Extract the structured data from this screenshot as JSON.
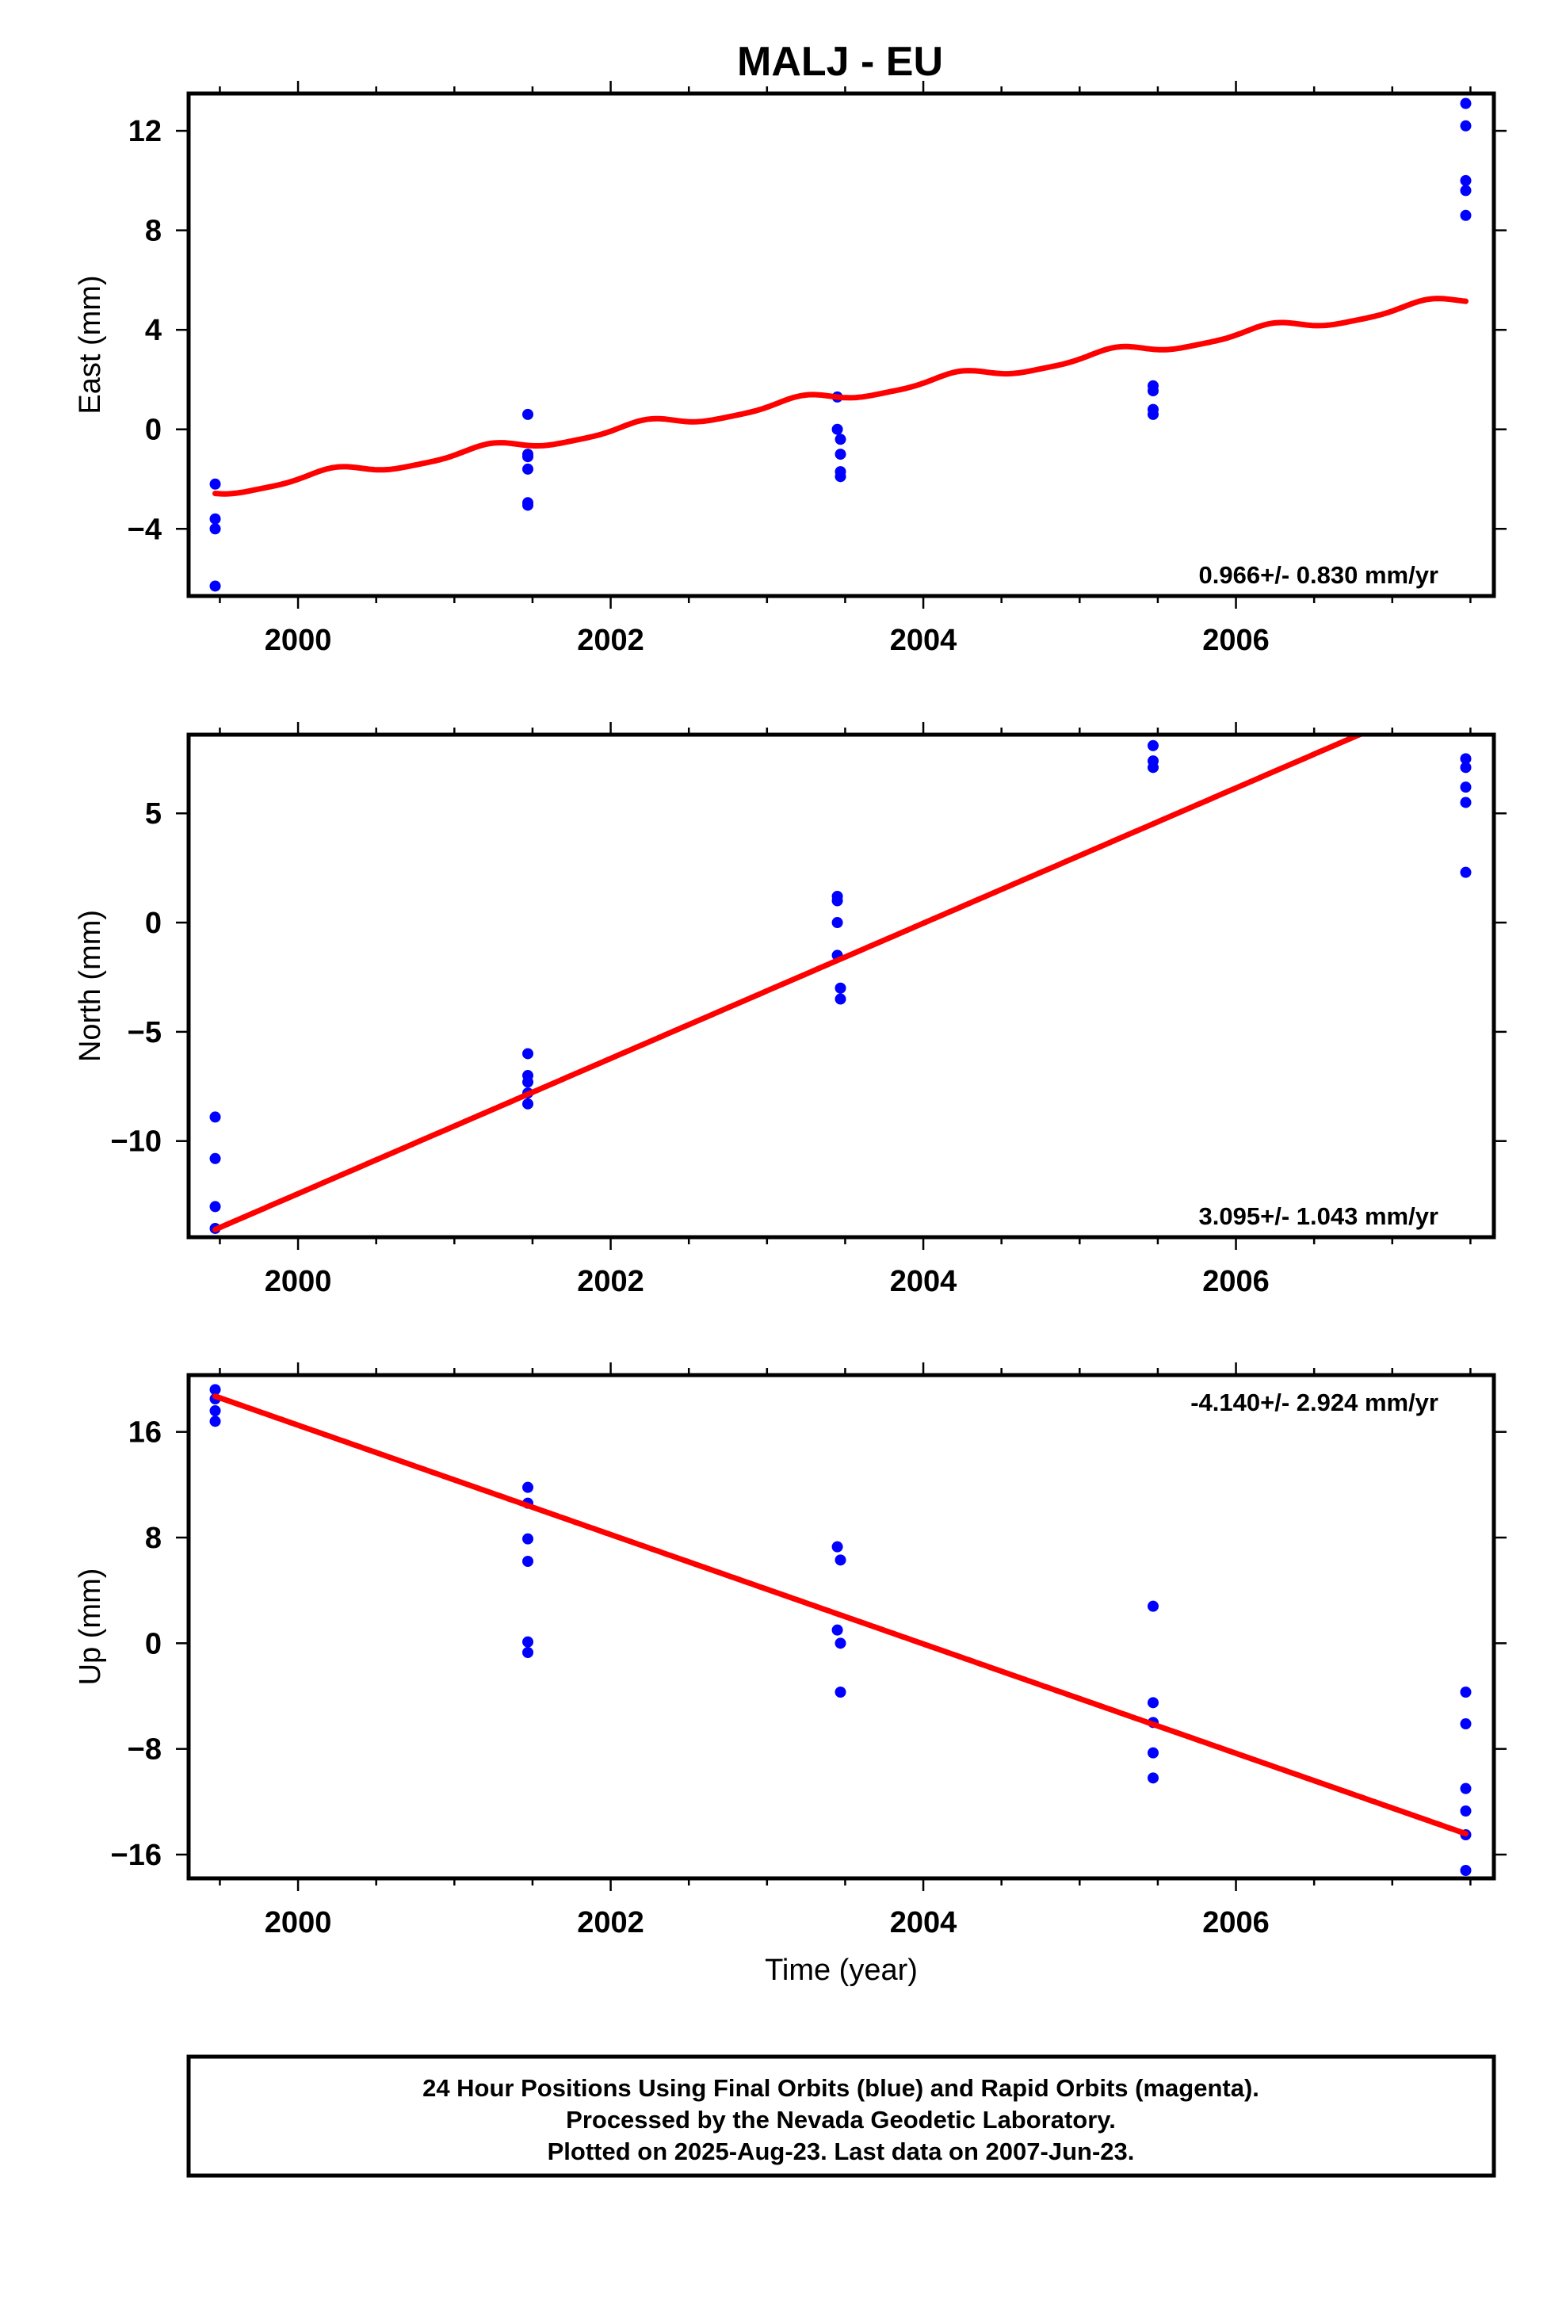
{
  "title": "MALJ - EU",
  "colors": {
    "points": "#0000ff",
    "fit": "#ff0000"
  },
  "chart_data": [
    {
      "type": "scatter",
      "ylabel": "East (mm)",
      "xlabel": "",
      "xlim": [
        1999.3,
        2007.65
      ],
      "ylim": [
        -6.7,
        13.5
      ],
      "x_ticks": [
        2000,
        2002,
        2004,
        2006
      ],
      "x_tick_labels": [
        "2000",
        "2002",
        "2004",
        "2006"
      ],
      "y_ticks": [
        -4,
        0,
        4,
        8,
        12
      ],
      "y_tick_labels": [
        "−4",
        "0",
        "4",
        "8",
        "12"
      ],
      "rate_label": "0.966+/- 0.830 mm/yr",
      "rate_position": "bottom-right",
      "points": [
        [
          1999.47,
          -2.2
        ],
        [
          1999.47,
          -3.6
        ],
        [
          1999.47,
          -4.0
        ],
        [
          1999.47,
          -6.3
        ],
        [
          2001.47,
          0.6
        ],
        [
          2001.47,
          -1.0
        ],
        [
          2001.47,
          -1.1
        ],
        [
          2001.47,
          -1.6
        ],
        [
          2001.47,
          -2.95
        ],
        [
          2001.47,
          -3.05
        ],
        [
          2003.45,
          1.3
        ],
        [
          2003.45,
          0.0
        ],
        [
          2003.47,
          -0.4
        ],
        [
          2003.47,
          -1.0
        ],
        [
          2003.47,
          -1.7
        ],
        [
          2003.47,
          -1.9
        ],
        [
          2005.47,
          1.75
        ],
        [
          2005.47,
          1.55
        ],
        [
          2005.47,
          0.8
        ],
        [
          2005.47,
          0.6
        ],
        [
          2007.47,
          13.1
        ],
        [
          2007.47,
          12.2
        ],
        [
          2007.47,
          10.0
        ],
        [
          2007.47,
          9.6
        ],
        [
          2007.47,
          8.6
        ]
      ],
      "fit": {
        "rate": 0.966,
        "intercept_at_x0": -2.52,
        "x0": 1999.47,
        "x_end": 2007.47,
        "seasonal": [
          {
            "cos": 0.05,
            "sin": 0.2,
            "omega": 6.2832
          },
          {
            "cos": -0.05,
            "sin": 0.0,
            "omega": 12.5664
          }
        ]
      }
    },
    {
      "type": "scatter",
      "ylabel": "North (mm)",
      "xlabel": "",
      "xlim": [
        1999.3,
        2007.65
      ],
      "ylim": [
        -14.4,
        8.6
      ],
      "x_ticks": [
        2000,
        2002,
        2004,
        2006
      ],
      "x_tick_labels": [
        "2000",
        "2002",
        "2004",
        "2006"
      ],
      "y_ticks": [
        -10,
        -5,
        0,
        5
      ],
      "y_tick_labels": [
        "−10",
        "−5",
        "0",
        "5"
      ],
      "rate_label": "3.095+/- 1.043 mm/yr",
      "rate_position": "bottom-right",
      "points": [
        [
          1999.47,
          -8.9
        ],
        [
          1999.47,
          -10.8
        ],
        [
          1999.47,
          -13.0
        ],
        [
          1999.47,
          -14.0
        ],
        [
          2001.47,
          -6.0
        ],
        [
          2001.47,
          -7.0
        ],
        [
          2001.47,
          -7.3
        ],
        [
          2001.47,
          -7.8
        ],
        [
          2001.47,
          -8.3
        ],
        [
          2003.45,
          1.2
        ],
        [
          2003.45,
          1.0
        ],
        [
          2003.45,
          0.0
        ],
        [
          2003.45,
          -1.5
        ],
        [
          2003.47,
          -3.0
        ],
        [
          2003.47,
          -3.5
        ],
        [
          2005.47,
          8.1
        ],
        [
          2005.47,
          7.4
        ],
        [
          2005.47,
          7.1
        ],
        [
          2007.47,
          7.5
        ],
        [
          2007.47,
          7.1
        ],
        [
          2007.47,
          6.2
        ],
        [
          2007.47,
          5.5
        ],
        [
          2007.47,
          2.3
        ]
      ],
      "fit": {
        "rate": 3.095,
        "intercept_at_x0": -14.05,
        "x0": 1999.47,
        "x_end": 2007.47,
        "seasonal": []
      }
    },
    {
      "type": "scatter",
      "ylabel": "Up (mm)",
      "xlabel": "Time (year)",
      "xlim": [
        1999.3,
        2007.65
      ],
      "ylim": [
        -17.8,
        20.3
      ],
      "x_ticks": [
        2000,
        2002,
        2004,
        2006
      ],
      "x_tick_labels": [
        "2000",
        "2002",
        "2004",
        "2006"
      ],
      "y_ticks": [
        -16,
        -8,
        0,
        8,
        16
      ],
      "y_tick_labels": [
        "−16",
        "−8",
        "0",
        "8",
        "16"
      ],
      "rate_label": "-4.140+/- 2.924 mm/yr",
      "rate_position": "top-right",
      "points": [
        [
          1999.47,
          19.2
        ],
        [
          1999.47,
          18.5
        ],
        [
          1999.47,
          17.6
        ],
        [
          1999.47,
          16.8
        ],
        [
          2001.47,
          11.8
        ],
        [
          2001.47,
          10.6
        ],
        [
          2001.47,
          7.9
        ],
        [
          2001.47,
          6.2
        ],
        [
          2001.47,
          0.1
        ],
        [
          2001.47,
          -0.7
        ],
        [
          2003.45,
          7.3
        ],
        [
          2003.47,
          6.3
        ],
        [
          2003.45,
          1.0
        ],
        [
          2003.47,
          0.0
        ],
        [
          2003.47,
          -3.7
        ],
        [
          2005.47,
          2.8
        ],
        [
          2005.47,
          -4.5
        ],
        [
          2005.47,
          -6.0
        ],
        [
          2005.47,
          -8.3
        ],
        [
          2005.47,
          -10.2
        ],
        [
          2007.47,
          -3.7
        ],
        [
          2007.47,
          -6.1
        ],
        [
          2007.47,
          -11.0
        ],
        [
          2007.47,
          -12.7
        ],
        [
          2007.47,
          -14.5
        ],
        [
          2007.47,
          -17.2
        ]
      ],
      "fit": {
        "rate": -4.14,
        "intercept_at_x0": 18.7,
        "x0": 1999.47,
        "x_end": 2007.47,
        "seasonal": []
      }
    }
  ],
  "footer": {
    "line1": "24 Hour Positions Using Final Orbits (blue) and Rapid Orbits (magenta).",
    "line2": "Processed by the Nevada Geodetic Laboratory.",
    "line3": "Plotted on 2025-Aug-23. Last data on 2007-Jun-23."
  }
}
